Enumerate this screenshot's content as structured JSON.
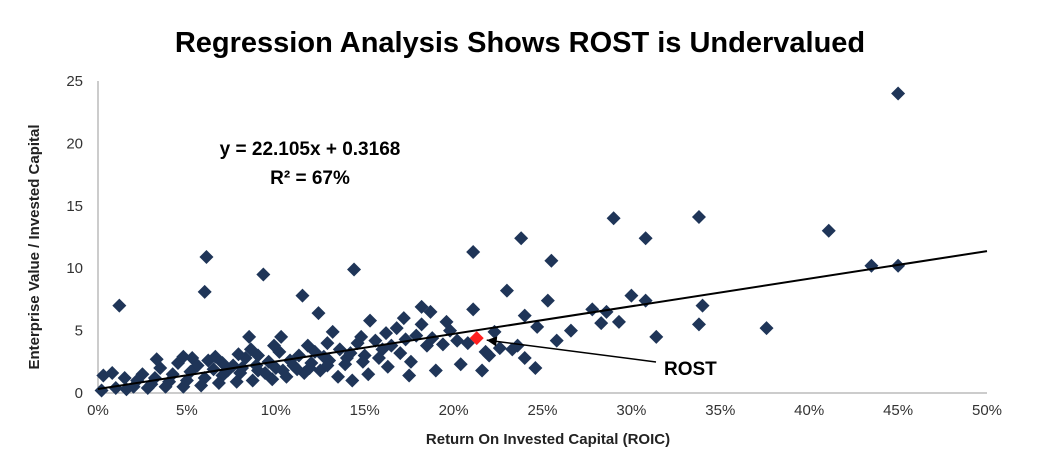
{
  "chart_data": {
    "type": "scatter",
    "title": "Regression Analysis Shows ROST is Undervalued",
    "xlabel": "Return On Invested Capital (ROIC)",
    "ylabel": "Enterprise Value / Invested Capital",
    "xlim": [
      0,
      50
    ],
    "ylim": [
      0,
      25
    ],
    "x_ticks": [
      "0%",
      "5%",
      "10%",
      "15%",
      "20%",
      "25%",
      "30%",
      "35%",
      "40%",
      "45%",
      "50%"
    ],
    "y_ticks": [
      "0",
      "5",
      "10",
      "15",
      "20",
      "25"
    ],
    "grid": false,
    "marker_color": "#1f3558",
    "highlight_color": "#ff2020",
    "trendline": {
      "slope": 22.105,
      "intercept": 0.3168,
      "equation": "y = 22.105x + 0.3168",
      "r2": "R² = 67%"
    },
    "highlight": {
      "label": "ROST",
      "x": 21.3,
      "y": 4.4
    },
    "points": [
      [
        45.0,
        24.0
      ],
      [
        29.0,
        14.0
      ],
      [
        33.8,
        14.1
      ],
      [
        41.1,
        13.0
      ],
      [
        30.8,
        12.4
      ],
      [
        23.8,
        12.4
      ],
      [
        21.1,
        11.3
      ],
      [
        25.5,
        10.6
      ],
      [
        6.1,
        10.9
      ],
      [
        9.3,
        9.5
      ],
      [
        14.4,
        9.9
      ],
      [
        43.5,
        10.2
      ],
      [
        45.0,
        10.2
      ],
      [
        6.0,
        8.1
      ],
      [
        1.2,
        7.0
      ],
      [
        11.5,
        7.8
      ],
      [
        12.4,
        6.4
      ],
      [
        17.2,
        6.0
      ],
      [
        18.2,
        6.9
      ],
      [
        18.7,
        6.5
      ],
      [
        21.1,
        6.7
      ],
      [
        23.0,
        8.2
      ],
      [
        24.0,
        6.2
      ],
      [
        25.3,
        7.4
      ],
      [
        27.8,
        6.7
      ],
      [
        28.6,
        6.5
      ],
      [
        30.0,
        7.8
      ],
      [
        30.8,
        7.4
      ],
      [
        34.0,
        7.0
      ],
      [
        37.6,
        5.2
      ],
      [
        33.8,
        5.5
      ],
      [
        31.4,
        4.5
      ],
      [
        29.3,
        5.7
      ],
      [
        28.3,
        5.6
      ],
      [
        26.6,
        5.0
      ],
      [
        24.7,
        5.3
      ],
      [
        25.8,
        4.2
      ],
      [
        24.0,
        2.8
      ],
      [
        24.6,
        2.0
      ],
      [
        21.6,
        1.8
      ],
      [
        20.4,
        2.3
      ],
      [
        19.0,
        1.8
      ],
      [
        17.5,
        1.4
      ],
      [
        22.3,
        4.9
      ],
      [
        23.3,
        3.5
      ],
      [
        15.3,
        5.8
      ],
      [
        14.8,
        4.5
      ],
      [
        16.2,
        4.8
      ],
      [
        13.2,
        4.9
      ],
      [
        10.3,
        4.5
      ],
      [
        8.5,
        4.5
      ],
      [
        19.8,
        5.0
      ],
      [
        18.5,
        3.8
      ],
      [
        17.0,
        3.2
      ],
      [
        16.0,
        3.5
      ],
      [
        15.0,
        3.0
      ],
      [
        14.0,
        2.8
      ],
      [
        13.0,
        2.6
      ],
      [
        12.0,
        2.4
      ],
      [
        11.0,
        2.2
      ],
      [
        10.0,
        2.0
      ],
      [
        9.0,
        1.8
      ],
      [
        8.0,
        1.6
      ],
      [
        7.0,
        1.4
      ],
      [
        6.0,
        1.2
      ],
      [
        5.0,
        1.0
      ],
      [
        4.0,
        0.9
      ],
      [
        3.0,
        0.7
      ],
      [
        2.0,
        0.5
      ],
      [
        1.0,
        0.4
      ],
      [
        0.2,
        0.2
      ],
      [
        0.3,
        1.4
      ],
      [
        0.8,
        1.6
      ],
      [
        1.5,
        1.2
      ],
      [
        2.5,
        1.5
      ],
      [
        3.5,
        2.0
      ],
      [
        3.3,
        2.7
      ],
      [
        4.5,
        2.4
      ],
      [
        5.3,
        2.8
      ],
      [
        6.2,
        2.6
      ],
      [
        5.6,
        2.2
      ],
      [
        7.0,
        2.4
      ],
      [
        7.6,
        2.2
      ],
      [
        8.3,
        2.8
      ],
      [
        9.0,
        3.0
      ],
      [
        9.6,
        2.5
      ],
      [
        10.2,
        3.3
      ],
      [
        10.8,
        2.6
      ],
      [
        11.3,
        3.0
      ],
      [
        12.2,
        3.3
      ],
      [
        12.7,
        2.9
      ],
      [
        13.6,
        3.5
      ],
      [
        14.2,
        3.2
      ],
      [
        14.6,
        4.0
      ],
      [
        15.6,
        4.2
      ],
      [
        16.5,
        3.8
      ],
      [
        17.3,
        4.3
      ],
      [
        17.9,
        4.6
      ],
      [
        18.8,
        4.4
      ],
      [
        19.4,
        3.9
      ],
      [
        20.2,
        4.2
      ],
      [
        21.8,
        3.3
      ],
      [
        22.6,
        3.6
      ],
      [
        13.5,
        1.3
      ],
      [
        14.3,
        1.0
      ],
      [
        15.2,
        1.5
      ],
      [
        16.3,
        2.1
      ],
      [
        17.6,
        2.5
      ],
      [
        12.5,
        1.8
      ],
      [
        11.6,
        1.6
      ],
      [
        10.6,
        1.3
      ],
      [
        9.8,
        1.1
      ],
      [
        8.7,
        1.0
      ],
      [
        7.8,
        0.9
      ],
      [
        6.8,
        0.8
      ],
      [
        5.8,
        0.6
      ],
      [
        4.8,
        0.5
      ],
      [
        3.8,
        0.5
      ],
      [
        2.8,
        0.4
      ],
      [
        1.6,
        0.3
      ],
      [
        6.5,
        1.9
      ],
      [
        7.3,
        1.8
      ],
      [
        8.1,
        2.0
      ],
      [
        8.9,
        2.2
      ],
      [
        9.4,
        1.6
      ],
      [
        10.4,
        1.8
      ],
      [
        11.2,
        1.9
      ],
      [
        11.9,
        2.0
      ],
      [
        12.9,
        2.2
      ],
      [
        13.9,
        2.3
      ],
      [
        14.9,
        2.5
      ],
      [
        15.8,
        2.8
      ],
      [
        2.2,
        1.0
      ],
      [
        3.2,
        1.2
      ],
      [
        4.2,
        1.5
      ],
      [
        5.2,
        1.7
      ],
      [
        6.6,
        2.9
      ],
      [
        4.8,
        2.9
      ],
      [
        7.9,
        3.1
      ],
      [
        8.6,
        3.5
      ],
      [
        9.9,
        3.8
      ],
      [
        11.8,
        3.8
      ],
      [
        12.9,
        4.0
      ],
      [
        16.8,
        5.2
      ],
      [
        18.2,
        5.5
      ],
      [
        19.6,
        5.7
      ],
      [
        20.8,
        4.0
      ],
      [
        22.0,
        3.0
      ],
      [
        23.6,
        3.8
      ]
    ]
  }
}
